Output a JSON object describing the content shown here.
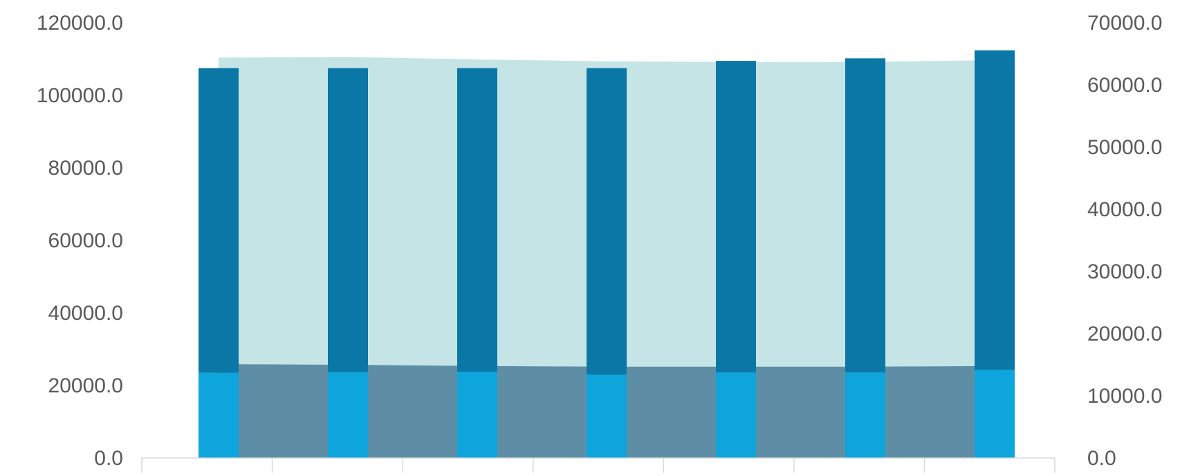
{
  "chart_data": {
    "type": "bar",
    "title": "",
    "xlabel": "",
    "ylabel": "",
    "categories": [
      "",
      "",
      "",
      "",
      "",
      "",
      ""
    ],
    "bar_series": [
      {
        "values": [
          23500,
          23700,
          23800,
          23000,
          23600,
          23600,
          24300
        ]
      },
      {
        "values": [
          84000,
          83800,
          83700,
          84500,
          85900,
          86600,
          88100
        ]
      }
    ],
    "area_series": [
      {
        "axis": "right",
        "values": [
          15100,
          15000,
          14800,
          14700,
          14700,
          14700,
          14800
        ]
      },
      {
        "axis": "right",
        "values": [
          49300,
          49500,
          49300,
          49100,
          49000,
          49000,
          49200
        ]
      }
    ],
    "y_left": {
      "ylim": [
        0,
        120000
      ],
      "ticks": [
        "0.0",
        "20000.0",
        "40000.0",
        "60000.0",
        "80000.0",
        "100000.0",
        "120000.0"
      ]
    },
    "y_right": {
      "ylim": [
        0,
        70000
      ],
      "ticks": [
        "0.0",
        "10000.0",
        "20000.0",
        "30000.0",
        "40000.0",
        "50000.0",
        "60000.0",
        "70000.0"
      ]
    },
    "grid": false,
    "colors": {
      "bar_bottom": "#0ea5dc",
      "bar_top": "#0a77a6",
      "area_bottom": "#5e8ea6",
      "area_top": "#c4e4e6",
      "tick_text": "#595959",
      "axis_line": "#d9d9d9"
    }
  }
}
